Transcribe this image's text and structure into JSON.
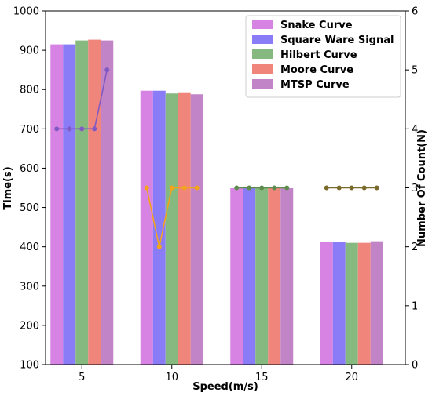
{
  "chart_data": {
    "type": "bar",
    "xlabel": "Speed(m/s)",
    "ylabel": "Time(s)",
    "y2label": "Number Of Count(N)",
    "categories": [
      "5",
      "10",
      "15",
      "20"
    ],
    "ylim": [
      100,
      1000
    ],
    "y2lim": [
      0,
      6
    ],
    "yticks": [
      "100",
      "200",
      "300",
      "400",
      "500",
      "600",
      "700",
      "800",
      "900",
      "1000"
    ],
    "y2ticks": [
      "0",
      "1",
      "2",
      "3",
      "4",
      "5",
      "6"
    ],
    "legend_position": "top-right",
    "series": [
      {
        "name": "Snake Curve",
        "color": "#d783e3",
        "values": [
          915,
          797,
          549,
          413
        ]
      },
      {
        "name": "Square Ware Signal",
        "color": "#8a7cf7",
        "values": [
          915,
          797,
          549,
          413
        ]
      },
      {
        "name": "Hilbert Curve",
        "color": "#86b97f",
        "values": [
          925,
          790,
          549,
          410
        ]
      },
      {
        "name": "Moore Curve",
        "color": "#f0857c",
        "values": [
          927,
          793,
          549,
          410
        ]
      },
      {
        "name": "MTSP Curve",
        "color": "#c184c6",
        "values": [
          925,
          788,
          549,
          414
        ]
      }
    ],
    "count_series": [
      {
        "category": "5",
        "color": "#8159c4",
        "values": [
          4,
          4,
          4,
          4,
          5
        ]
      },
      {
        "category": "10",
        "color": "#f3a31c",
        "values": [
          3,
          2,
          3,
          3,
          3
        ]
      },
      {
        "category": "15",
        "color": "#5f8c4e",
        "values": [
          3,
          3,
          3,
          3,
          3
        ]
      },
      {
        "category": "20",
        "color": "#7a6a2c",
        "values": [
          3,
          3,
          3,
          3,
          3
        ]
      }
    ]
  }
}
